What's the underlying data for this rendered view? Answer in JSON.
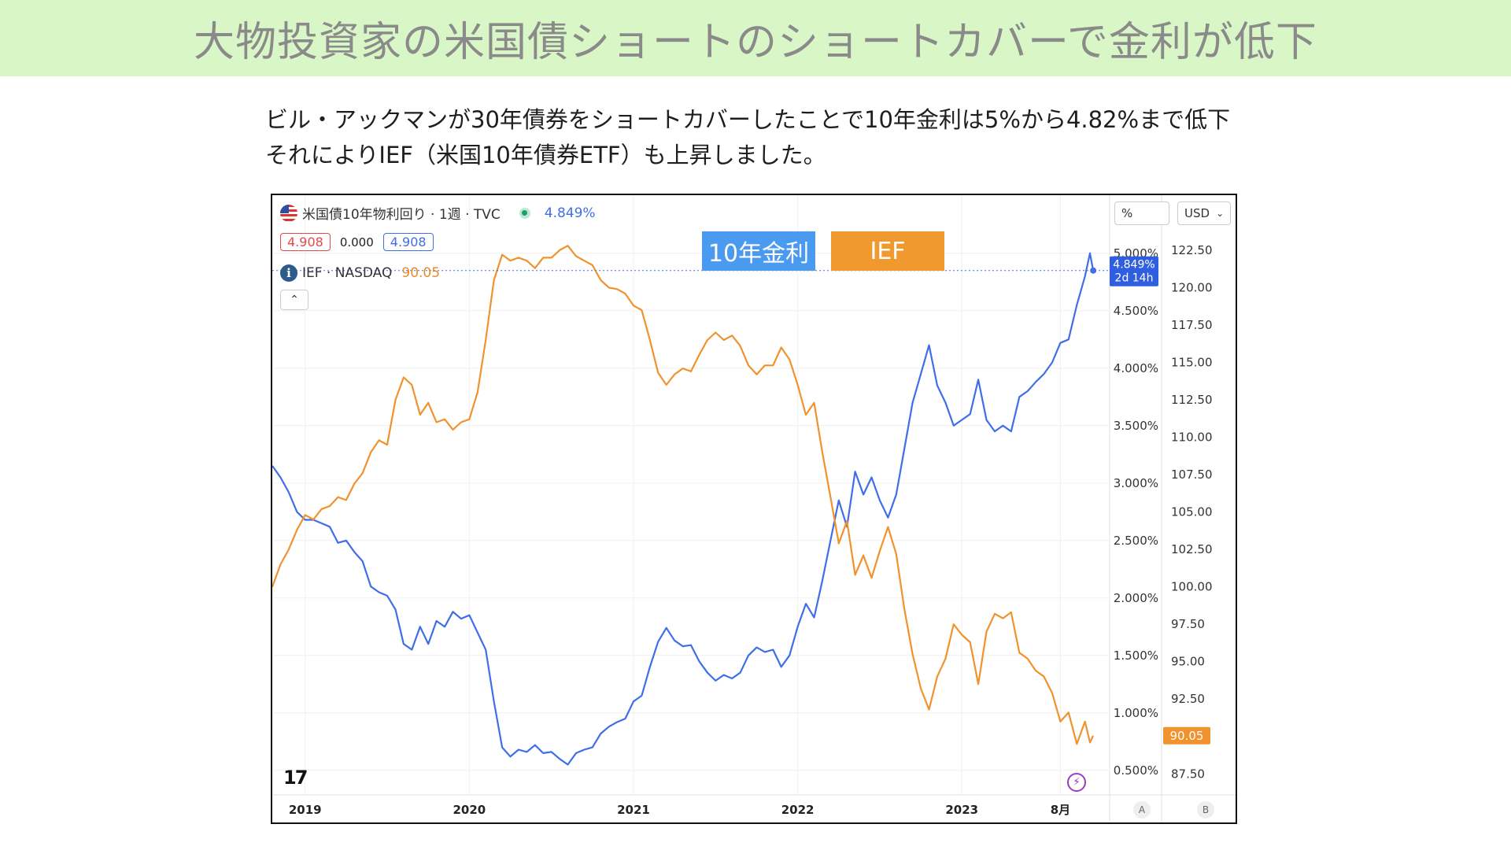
{
  "banner": {
    "title": "大物投資家の米国債ショートのショートカバーで金利が低下"
  },
  "description": {
    "line1": "ビル・アックマンが30年債券をショートカバーしたことで10年金利は5%から4.82%まで低下",
    "line2": "それによりIEF（米国10年債券ETF）も上昇しました。"
  },
  "legend": {
    "series1_title": "米国債10年物利回り · 1週 · TVC",
    "series1_value": "4.849%",
    "pill_left": "4.908",
    "pill_mid": "0.000",
    "pill_right": "4.908",
    "series2_title": "IEF · NASDAQ",
    "series2_value": "90.05",
    "collapse_icon": "chevron-up-icon"
  },
  "overlay_labels": {
    "yield_label": "10年金利",
    "ief_label": "IEF"
  },
  "toolbar": {
    "percent_unit": "%",
    "currency": "USD",
    "currency_arrow": "⌄"
  },
  "last_value_tags": {
    "yield_tag": "4.849%",
    "yield_countdown": "2d 14h",
    "ief_tag": "90.05"
  },
  "axis_buttons": {
    "a": "A",
    "b": "B"
  },
  "colors": {
    "yield": "#3f6ee8",
    "ief": "#f0922d",
    "banner": "#d9f7c6"
  },
  "chart_data": {
    "type": "line",
    "x_ticks": [
      "2019",
      "2020",
      "2021",
      "2022",
      "2023",
      "8月"
    ],
    "y_left_label": "",
    "y_pct_ticks": [
      "5.000%",
      "4.500%",
      "4.000%",
      "3.500%",
      "3.000%",
      "2.500%",
      "2.000%",
      "1.500%",
      "1.000%",
      "0.500%"
    ],
    "y_pct_range": [
      0.3,
      5.3
    ],
    "y_usd_ticks": [
      "122.50",
      "120.00",
      "117.50",
      "115.00",
      "112.50",
      "110.00",
      "107.50",
      "105.00",
      "102.50",
      "100.00",
      "97.50",
      "95.00",
      "92.50",
      "90.00",
      "87.50"
    ],
    "y_usd_range": [
      86.2,
      124.6
    ],
    "x_range": [
      2018.8,
      2023.9
    ],
    "series": [
      {
        "name": "米国債10年物利回り",
        "axis": "pct",
        "points": [
          [
            2018.8,
            3.15
          ],
          [
            2018.85,
            3.05
          ],
          [
            2018.9,
            2.92
          ],
          [
            2018.95,
            2.75
          ],
          [
            2019.0,
            2.68
          ],
          [
            2019.05,
            2.68
          ],
          [
            2019.1,
            2.65
          ],
          [
            2019.15,
            2.62
          ],
          [
            2019.2,
            2.48
          ],
          [
            2019.25,
            2.5
          ],
          [
            2019.3,
            2.4
          ],
          [
            2019.35,
            2.32
          ],
          [
            2019.4,
            2.1
          ],
          [
            2019.45,
            2.05
          ],
          [
            2019.5,
            2.02
          ],
          [
            2019.55,
            1.9
          ],
          [
            2019.6,
            1.6
          ],
          [
            2019.65,
            1.55
          ],
          [
            2019.7,
            1.75
          ],
          [
            2019.75,
            1.6
          ],
          [
            2019.8,
            1.8
          ],
          [
            2019.85,
            1.75
          ],
          [
            2019.9,
            1.88
          ],
          [
            2019.95,
            1.82
          ],
          [
            2020.0,
            1.85
          ],
          [
            2020.05,
            1.7
          ],
          [
            2020.1,
            1.55
          ],
          [
            2020.15,
            1.1
          ],
          [
            2020.2,
            0.7
          ],
          [
            2020.25,
            0.62
          ],
          [
            2020.3,
            0.68
          ],
          [
            2020.35,
            0.66
          ],
          [
            2020.4,
            0.72
          ],
          [
            2020.45,
            0.65
          ],
          [
            2020.5,
            0.66
          ],
          [
            2020.55,
            0.6
          ],
          [
            2020.6,
            0.55
          ],
          [
            2020.65,
            0.65
          ],
          [
            2020.7,
            0.68
          ],
          [
            2020.75,
            0.7
          ],
          [
            2020.8,
            0.82
          ],
          [
            2020.85,
            0.88
          ],
          [
            2020.9,
            0.92
          ],
          [
            2020.95,
            0.95
          ],
          [
            2021.0,
            1.1
          ],
          [
            2021.05,
            1.15
          ],
          [
            2021.1,
            1.4
          ],
          [
            2021.15,
            1.62
          ],
          [
            2021.2,
            1.74
          ],
          [
            2021.25,
            1.63
          ],
          [
            2021.3,
            1.58
          ],
          [
            2021.35,
            1.59
          ],
          [
            2021.4,
            1.45
          ],
          [
            2021.45,
            1.35
          ],
          [
            2021.5,
            1.28
          ],
          [
            2021.55,
            1.33
          ],
          [
            2021.6,
            1.3
          ],
          [
            2021.65,
            1.35
          ],
          [
            2021.7,
            1.5
          ],
          [
            2021.75,
            1.57
          ],
          [
            2021.8,
            1.53
          ],
          [
            2021.85,
            1.55
          ],
          [
            2021.9,
            1.4
          ],
          [
            2021.95,
            1.5
          ],
          [
            2022.0,
            1.75
          ],
          [
            2022.05,
            1.95
          ],
          [
            2022.1,
            1.83
          ],
          [
            2022.15,
            2.15
          ],
          [
            2022.2,
            2.5
          ],
          [
            2022.25,
            2.85
          ],
          [
            2022.3,
            2.62
          ],
          [
            2022.35,
            3.1
          ],
          [
            2022.4,
            2.9
          ],
          [
            2022.45,
            3.05
          ],
          [
            2022.5,
            2.85
          ],
          [
            2022.55,
            2.7
          ],
          [
            2022.6,
            2.9
          ],
          [
            2022.65,
            3.3
          ],
          [
            2022.7,
            3.7
          ],
          [
            2022.75,
            3.95
          ],
          [
            2022.8,
            4.2
          ],
          [
            2022.85,
            3.85
          ],
          [
            2022.9,
            3.7
          ],
          [
            2022.95,
            3.5
          ],
          [
            2023.0,
            3.55
          ],
          [
            2023.05,
            3.6
          ],
          [
            2023.1,
            3.9
          ],
          [
            2023.15,
            3.55
          ],
          [
            2023.2,
            3.45
          ],
          [
            2023.25,
            3.5
          ],
          [
            2023.3,
            3.45
          ],
          [
            2023.35,
            3.75
          ],
          [
            2023.4,
            3.8
          ],
          [
            2023.45,
            3.88
          ],
          [
            2023.5,
            3.95
          ],
          [
            2023.55,
            4.05
          ],
          [
            2023.6,
            4.22
          ],
          [
            2023.65,
            4.25
          ],
          [
            2023.7,
            4.55
          ],
          [
            2023.75,
            4.8
          ],
          [
            2023.78,
            5.0
          ],
          [
            2023.8,
            4.85
          ]
        ]
      },
      {
        "name": "IEF",
        "axis": "usd",
        "points": [
          [
            2018.8,
            100.0
          ],
          [
            2018.85,
            101.5
          ],
          [
            2018.9,
            102.5
          ],
          [
            2018.95,
            103.8
          ],
          [
            2019.0,
            104.8
          ],
          [
            2019.05,
            104.5
          ],
          [
            2019.1,
            105.2
          ],
          [
            2019.15,
            105.4
          ],
          [
            2019.2,
            106.0
          ],
          [
            2019.25,
            105.8
          ],
          [
            2019.3,
            106.9
          ],
          [
            2019.35,
            107.6
          ],
          [
            2019.4,
            109.0
          ],
          [
            2019.45,
            109.8
          ],
          [
            2019.5,
            109.5
          ],
          [
            2019.55,
            112.5
          ],
          [
            2019.6,
            114.0
          ],
          [
            2019.65,
            113.5
          ],
          [
            2019.7,
            111.5
          ],
          [
            2019.75,
            112.3
          ],
          [
            2019.8,
            111.0
          ],
          [
            2019.85,
            111.2
          ],
          [
            2019.9,
            110.5
          ],
          [
            2019.95,
            111.0
          ],
          [
            2020.0,
            111.2
          ],
          [
            2020.05,
            113.0
          ],
          [
            2020.1,
            116.5
          ],
          [
            2020.15,
            120.5
          ],
          [
            2020.2,
            122.2
          ],
          [
            2020.25,
            121.8
          ],
          [
            2020.3,
            122.0
          ],
          [
            2020.35,
            121.8
          ],
          [
            2020.4,
            121.3
          ],
          [
            2020.45,
            122.0
          ],
          [
            2020.5,
            122.0
          ],
          [
            2020.55,
            122.5
          ],
          [
            2020.6,
            122.8
          ],
          [
            2020.65,
            122.1
          ],
          [
            2020.7,
            121.8
          ],
          [
            2020.75,
            121.5
          ],
          [
            2020.8,
            120.5
          ],
          [
            2020.85,
            120.0
          ],
          [
            2020.9,
            119.9
          ],
          [
            2020.95,
            119.6
          ],
          [
            2021.0,
            118.8
          ],
          [
            2021.05,
            118.5
          ],
          [
            2021.1,
            116.5
          ],
          [
            2021.15,
            114.3
          ],
          [
            2021.2,
            113.5
          ],
          [
            2021.25,
            114.2
          ],
          [
            2021.3,
            114.6
          ],
          [
            2021.35,
            114.4
          ],
          [
            2021.4,
            115.5
          ],
          [
            2021.45,
            116.5
          ],
          [
            2021.5,
            117.0
          ],
          [
            2021.55,
            116.5
          ],
          [
            2021.6,
            116.8
          ],
          [
            2021.65,
            116.1
          ],
          [
            2021.7,
            114.8
          ],
          [
            2021.75,
            114.2
          ],
          [
            2021.8,
            114.8
          ],
          [
            2021.85,
            114.8
          ],
          [
            2021.9,
            116.0
          ],
          [
            2021.95,
            115.2
          ],
          [
            2022.0,
            113.5
          ],
          [
            2022.05,
            111.5
          ],
          [
            2022.1,
            112.3
          ],
          [
            2022.15,
            109.0
          ],
          [
            2022.2,
            106.0
          ],
          [
            2022.25,
            102.9
          ],
          [
            2022.3,
            104.4
          ],
          [
            2022.35,
            100.8
          ],
          [
            2022.4,
            102.1
          ],
          [
            2022.45,
            100.6
          ],
          [
            2022.5,
            102.4
          ],
          [
            2022.55,
            104.0
          ],
          [
            2022.6,
            102.2
          ],
          [
            2022.65,
            98.5
          ],
          [
            2022.7,
            95.5
          ],
          [
            2022.75,
            93.2
          ],
          [
            2022.8,
            91.8
          ],
          [
            2022.85,
            94.0
          ],
          [
            2022.9,
            95.2
          ],
          [
            2022.95,
            97.5
          ],
          [
            2023.0,
            96.8
          ],
          [
            2023.05,
            96.3
          ],
          [
            2023.1,
            93.5
          ],
          [
            2023.15,
            97.0
          ],
          [
            2023.2,
            98.2
          ],
          [
            2023.25,
            97.9
          ],
          [
            2023.3,
            98.3
          ],
          [
            2023.35,
            95.6
          ],
          [
            2023.4,
            95.2
          ],
          [
            2023.45,
            94.4
          ],
          [
            2023.5,
            94.0
          ],
          [
            2023.55,
            92.9
          ],
          [
            2023.6,
            91.0
          ],
          [
            2023.65,
            91.6
          ],
          [
            2023.7,
            89.5
          ],
          [
            2023.75,
            91.0
          ],
          [
            2023.78,
            89.6
          ],
          [
            2023.8,
            90.05
          ]
        ]
      }
    ]
  }
}
